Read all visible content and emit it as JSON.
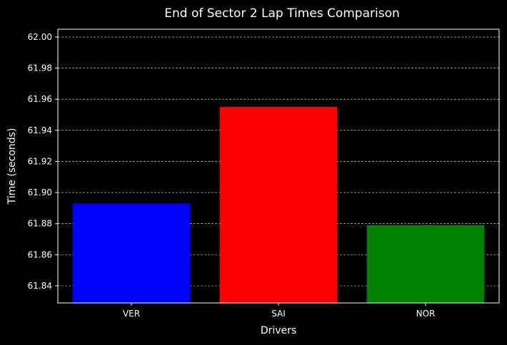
{
  "chart_data": {
    "type": "bar",
    "title": "End of Sector 2 Lap Times Comparison",
    "xlabel": "Drivers",
    "ylabel": "Time (seconds)",
    "categories": [
      "VER",
      "SAI",
      "NOR"
    ],
    "values": [
      61.893,
      61.955,
      61.879
    ],
    "colors": [
      "#0000ff",
      "#ff0000",
      "#008000"
    ],
    "ylim": [
      61.829,
      62.005
    ],
    "yticks": [
      61.84,
      61.86,
      61.88,
      61.9,
      61.92,
      61.94,
      61.96,
      61.98,
      62.0
    ],
    "ytick_labels": [
      "61.84",
      "61.86",
      "61.88",
      "61.90",
      "61.92",
      "61.94",
      "61.96",
      "61.98",
      "62.00"
    ],
    "grid": "y-only dashed",
    "background": "#000000",
    "text_color": "#ffffff"
  }
}
